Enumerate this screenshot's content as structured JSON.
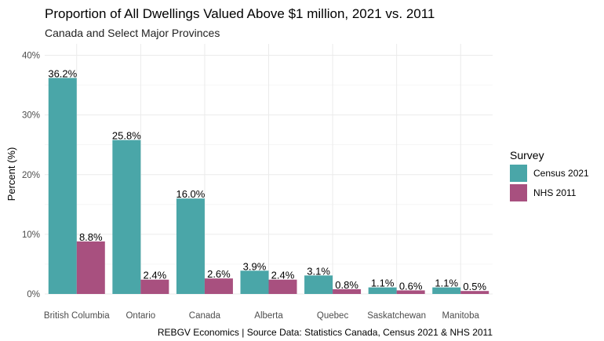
{
  "chart_data": {
    "type": "bar",
    "title": "Proportion of All Dwellings Valued Above $1 million, 2021 vs. 2011",
    "subtitle": "Canada and Select Major Provinces",
    "xlabel": "",
    "ylabel": "Percent (%)",
    "caption": "REBGV Economics | Source Data: Statistics Canada, Census 2021 & NHS 2011",
    "ylim": [
      0,
      40
    ],
    "yticks": [
      0,
      10,
      20,
      30,
      40
    ],
    "ytick_labels": [
      "0%",
      "10%",
      "20%",
      "30%",
      "40%"
    ],
    "grid": true,
    "legend": {
      "title": "Survey",
      "position": "right"
    },
    "categories": [
      "British Columbia",
      "Ontario",
      "Canada",
      "Alberta",
      "Quebec",
      "Saskatchewan",
      "Manitoba"
    ],
    "series": [
      {
        "name": "Census 2021",
        "color": "#4aa6a8",
        "values": [
          36.2,
          25.8,
          16.0,
          3.9,
          3.1,
          1.1,
          1.1
        ],
        "labels": [
          "36.2%",
          "25.8%",
          "16.0%",
          "3.9%",
          "3.1%",
          "1.1%",
          "1.1%"
        ]
      },
      {
        "name": "NHS 2011",
        "color": "#a8507f",
        "values": [
          8.8,
          2.4,
          2.6,
          2.4,
          0.8,
          0.6,
          0.5
        ],
        "labels": [
          "8.8%",
          "2.4%",
          "2.6%",
          "2.4%",
          "0.8%",
          "0.6%",
          "0.5%"
        ]
      }
    ]
  }
}
